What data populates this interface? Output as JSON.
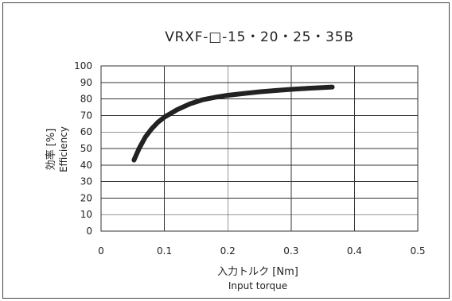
{
  "chart_data": {
    "type": "line",
    "title": "VRXF-□-15・20・25・35B",
    "xlabel": "入力トルク [Nm]",
    "xlabel_sub": "Input torque",
    "ylabel": "効率 [%]",
    "ylabel_sub": "Efficiency",
    "xlim": [
      0,
      0.5
    ],
    "ylim": [
      0,
      100
    ],
    "xticks": [
      0,
      0.1,
      0.2,
      0.3,
      0.4,
      0.5
    ],
    "yticks": [
      0,
      10,
      20,
      30,
      40,
      50,
      60,
      70,
      80,
      90,
      100
    ],
    "xtick_labels": [
      "0",
      "0.1",
      "0.2",
      "0.3",
      "0.4",
      "0.5"
    ],
    "ytick_labels": [
      "0",
      "10",
      "20",
      "30",
      "40",
      "50",
      "60",
      "70",
      "80",
      "90",
      "100"
    ],
    "grid": true,
    "series": [
      {
        "x": [
          0.052,
          0.06,
          0.07,
          0.08,
          0.09,
          0.1,
          0.12,
          0.14,
          0.16,
          0.18,
          0.2,
          0.225,
          0.25,
          0.275,
          0.3,
          0.325,
          0.35,
          0.365
        ],
        "y": [
          43,
          50,
          57,
          62,
          66,
          69,
          73.5,
          77,
          79.5,
          81,
          82.2,
          83.3,
          84.3,
          85.1,
          85.8,
          86.4,
          86.9,
          87.2
        ],
        "color": "#222222"
      }
    ]
  }
}
